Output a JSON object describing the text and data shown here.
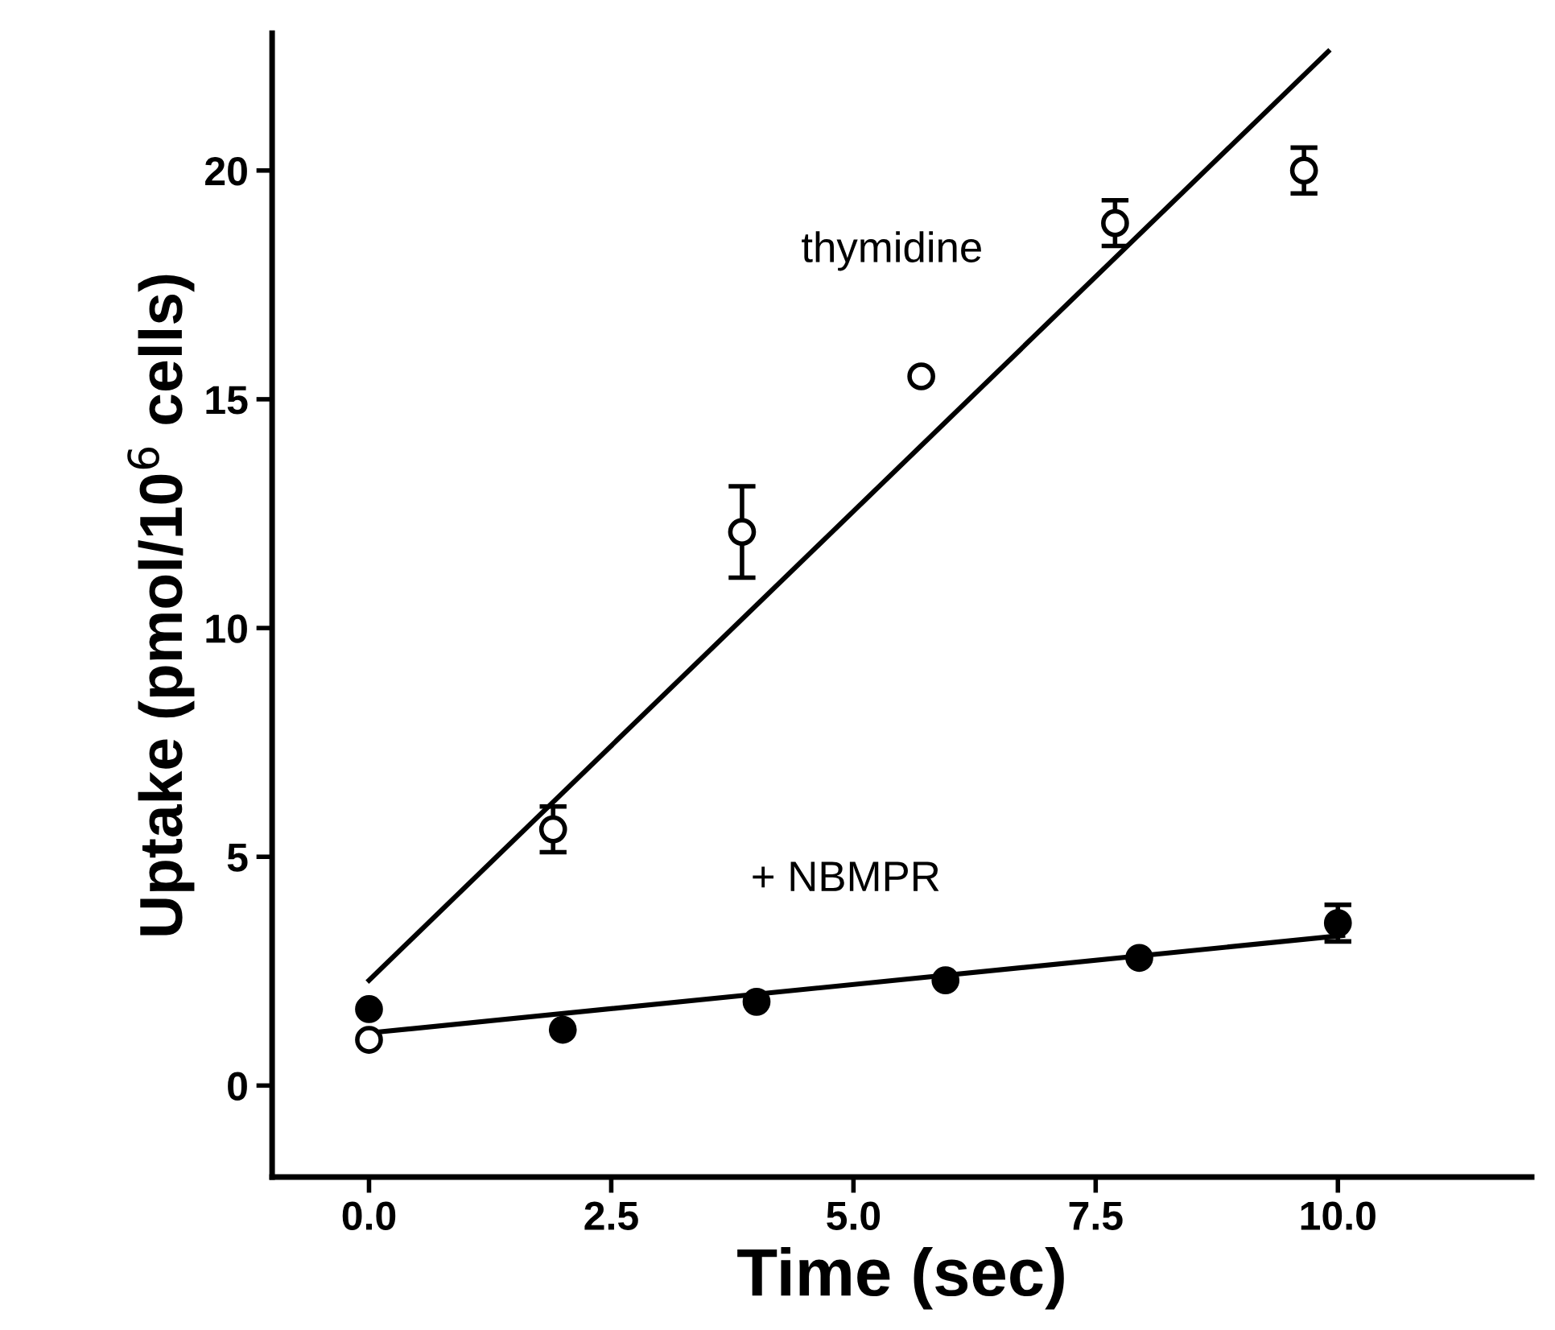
{
  "chart_data": {
    "type": "scatter",
    "xlabel": "Time (sec)",
    "ylabel": "Uptake (pmol/10$^{6}$ cells)",
    "xlim": [
      -1,
      12
    ],
    "ylim": [
      -2,
      23
    ],
    "xticks": [
      {
        "value": 0,
        "label": "0.0"
      },
      {
        "value": 2.5,
        "label": "2.5"
      },
      {
        "value": 5,
        "label": "5.0"
      },
      {
        "value": 7.5,
        "label": "7.5"
      },
      {
        "value": 10,
        "label": "10.0"
      }
    ],
    "yticks": [
      0,
      5,
      10,
      15,
      20
    ],
    "grid": false,
    "legend": false,
    "marker": "circle",
    "series": [
      {
        "name": "thymidine",
        "color": "#ffffff",
        "x": [
          0,
          1.9,
          3.85,
          5.7,
          7.7,
          9.65
        ],
        "values": [
          1.0,
          5.6,
          12.1,
          15.5,
          18.85,
          20.0
        ],
        "errors": [
          null,
          0.5,
          1.0,
          null,
          0.5,
          0.5
        ]
      },
      {
        "type": "line",
        "color": "#000000",
        "marker": "none",
        "x": [
          0,
          9.9
        ],
        "values": [
          2.3,
          22.6
        ]
      },
      {
        "name": "+ NBMPR",
        "color": "#000000",
        "x": [
          0,
          2,
          4,
          5.95,
          7.95,
          10
        ],
        "values": [
          1.67,
          1.22,
          1.83,
          2.3,
          2.79,
          3.55
        ],
        "errors": [
          null,
          null,
          null,
          null,
          null,
          0.4
        ]
      },
      {
        "type": "line",
        "color": "#000000",
        "marker": "none",
        "x": [
          0,
          10.05
        ],
        "values": [
          1.15,
          3.28
        ]
      }
    ]
  }
}
